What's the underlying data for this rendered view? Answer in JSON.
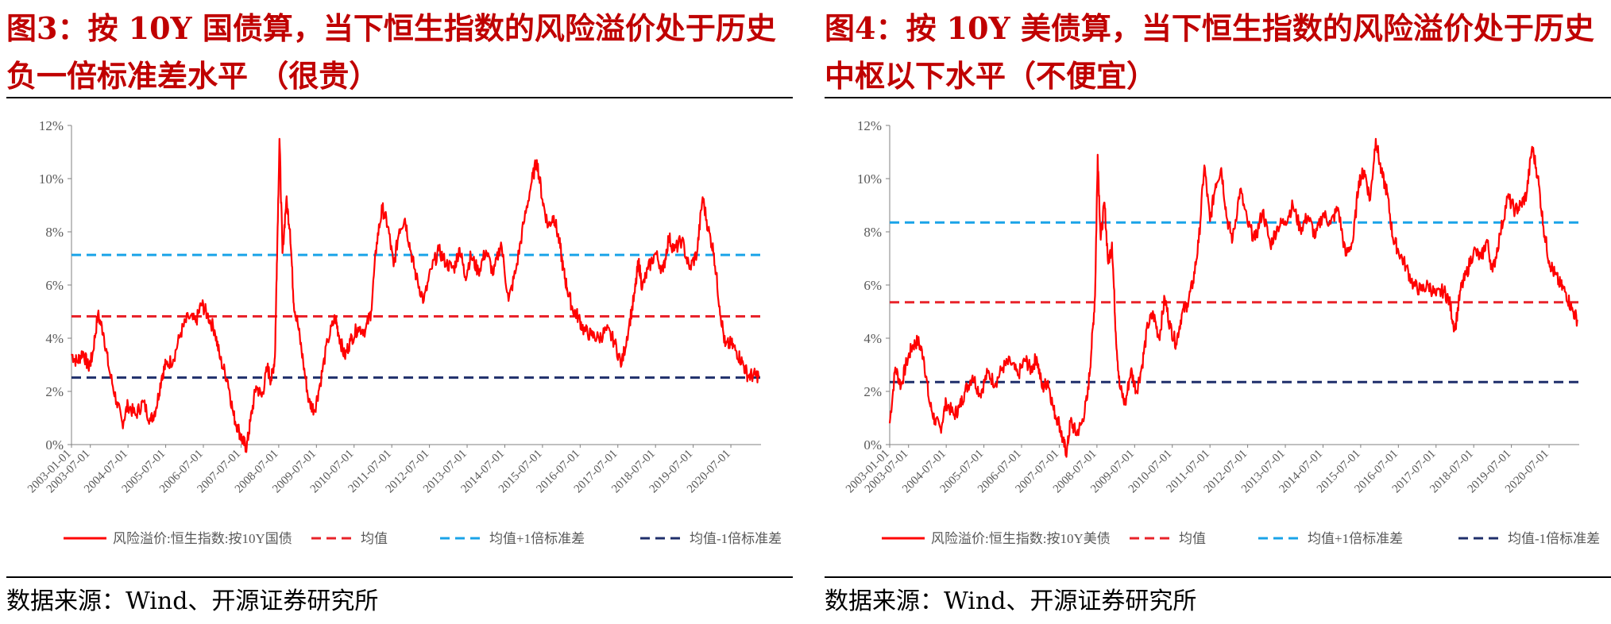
{
  "figures": [
    {
      "title": "图3：按 10Y 国债算，当下恒生指数的风险溢价处于历史负一倍标准差水平 （很贵）",
      "source": "数据来源：Wind、开源证券研究所",
      "chart_data": {
        "type": "line",
        "yticks": [
          "0%",
          "2%",
          "4%",
          "6%",
          "8%",
          "10%",
          "12%"
        ],
        "ylim": [
          0,
          12
        ],
        "xticks": [
          "2003-01-01",
          "2003-07-01",
          "2004-07-01",
          "2005-07-01",
          "2006-07-01",
          "2007-07-01",
          "2008-07-01",
          "2009-07-01",
          "2010-07-01",
          "2011-07-01",
          "2012-07-01",
          "2013-07-01",
          "2014-07-01",
          "2015-07-01",
          "2016-07-01",
          "2017-07-01",
          "2018-07-01",
          "2019-07-01",
          "2020-07-01"
        ],
        "xstart": 2003.0,
        "xend": 2021.3,
        "legend": [
          "风险溢价:恒生指数:按10Y国债",
          "均值",
          "均值+1倍标准差",
          "均值-1倍标准差"
        ],
        "mean": 4.82,
        "plus1sd": 7.13,
        "minus1sd": 2.52,
        "series": [
          {
            "name": "风险溢价:恒生指数:按10Y国债",
            "x": [
              2003.0,
              2003.15,
              2003.3,
              2003.45,
              2003.55,
              2003.7,
              2003.85,
              2004.0,
              2004.2,
              2004.35,
              2004.5,
              2004.7,
              2004.9,
              2005.1,
              2005.25,
              2005.4,
              2005.5,
              2005.7,
              2005.9,
              2006.1,
              2006.3,
              2006.45,
              2006.6,
              2006.8,
              2006.95,
              2007.15,
              2007.3,
              2007.45,
              2007.55,
              2007.65,
              2007.75,
              2007.9,
              2008.05,
              2008.2,
              2008.3,
              2008.4,
              2008.45,
              2008.52,
              2008.6,
              2008.7,
              2008.8,
              2008.9,
              2009.0,
              2009.15,
              2009.3,
              2009.45,
              2009.6,
              2009.8,
              2010.0,
              2010.1,
              2010.25,
              2010.4,
              2010.6,
              2010.8,
              2010.95,
              2011.1,
              2011.25,
              2011.4,
              2011.55,
              2011.7,
              2011.85,
              2012.0,
              2012.15,
              2012.35,
              2012.55,
              2012.75,
              2012.95,
              2013.15,
              2013.3,
              2013.45,
              2013.6,
              2013.8,
              2014.0,
              2014.2,
              2014.4,
              2014.6,
              2014.8,
              2015.0,
              2015.2,
              2015.35,
              2015.5,
              2015.65,
              2015.8,
              2015.95,
              2016.05,
              2016.15,
              2016.3,
              2016.45,
              2016.6,
              2016.8,
              2017.0,
              2017.2,
              2017.4,
              2017.6,
              2017.8,
              2017.95,
              2018.05,
              2018.15,
              2018.3,
              2018.5,
              2018.7,
              2018.85,
              2019.0,
              2019.2,
              2019.4,
              2019.6,
              2019.75,
              2019.9,
              2020.05,
              2020.2,
              2020.35,
              2020.5,
              2020.65,
              2020.8,
              2020.95,
              2021.1,
              2021.25
            ],
            "y": [
              3.4,
              3.1,
              3.5,
              2.9,
              3.3,
              4.9,
              4.2,
              2.8,
              1.6,
              0.8,
              1.5,
              1.1,
              1.6,
              0.9,
              1.4,
              2.6,
              3.0,
              3.2,
              4.2,
              4.8,
              4.6,
              5.3,
              4.9,
              4.3,
              3.2,
              2.4,
              1.1,
              0.5,
              0.1,
              -0.1,
              0.9,
              2.2,
              1.8,
              2.9,
              2.4,
              3.3,
              6.8,
              11.5,
              7.2,
              9.2,
              8.1,
              5.3,
              4.6,
              3.1,
              1.6,
              1.3,
              2.3,
              3.9,
              4.8,
              4.1,
              3.3,
              3.9,
              4.4,
              4.3,
              5.0,
              7.6,
              8.9,
              8.2,
              6.7,
              8.1,
              8.5,
              7.3,
              6.3,
              5.4,
              6.6,
              7.3,
              6.8,
              6.6,
              7.4,
              6.3,
              7.1,
              6.5,
              7.3,
              6.4,
              7.6,
              5.4,
              6.6,
              8.3,
              9.8,
              10.7,
              9.2,
              8.2,
              8.6,
              7.6,
              6.6,
              5.9,
              5.1,
              4.8,
              4.3,
              4.1,
              4.0,
              4.3,
              3.9,
              3.0,
              4.5,
              5.7,
              6.9,
              5.9,
              6.6,
              7.2,
              6.5,
              7.8,
              7.3,
              7.7,
              6.6,
              7.2,
              9.3,
              8.1,
              7.2,
              5.2,
              3.7,
              3.8,
              3.5,
              3.1,
              2.6,
              2.6,
              2.6
            ]
          }
        ]
      }
    },
    {
      "title": "图4：按 10Y 美债算，当下恒生指数的风险溢价处于历史中枢以下水平（不便宜）",
      "source": "数据来源：Wind、开源证券研究所",
      "chart_data": {
        "type": "line",
        "yticks": [
          "0%",
          "2%",
          "4%",
          "6%",
          "8%",
          "10%",
          "12%"
        ],
        "ylim": [
          0,
          12
        ],
        "xticks": [
          "2003-01-01",
          "2003-07-01",
          "2004-07-01",
          "2005-07-01",
          "2006-07-01",
          "2007-07-01",
          "2008-07-01",
          "2009-07-01",
          "2010-07-01",
          "2011-07-01",
          "2012-07-01",
          "2013-07-01",
          "2014-07-01",
          "2015-07-01",
          "2016-07-01",
          "2017-07-01",
          "2018-07-01",
          "2019-07-01",
          "2020-07-01"
        ],
        "xstart": 2003.0,
        "xend": 2021.3,
        "legend": [
          "风险溢价:恒生指数:按10Y美债",
          "均值",
          "均值+1倍标准差",
          "均值-1倍标准差"
        ],
        "mean": 5.35,
        "plus1sd": 8.35,
        "minus1sd": 2.35,
        "series": [
          {
            "name": "风险溢价:恒生指数:按10Y美债",
            "x": [
              2003.0,
              2003.15,
              2003.3,
              2003.45,
              2003.6,
              2003.75,
              2003.9,
              2004.05,
              2004.2,
              2004.35,
              2004.5,
              2004.7,
              2004.85,
              2005.0,
              2005.2,
              2005.4,
              2005.6,
              2005.8,
              2006.0,
              2006.2,
              2006.4,
              2006.6,
              2006.75,
              2006.9,
              2007.05,
              2007.2,
              2007.35,
              2007.5,
              2007.6,
              2007.7,
              2007.8,
              2007.95,
              2008.1,
              2008.25,
              2008.35,
              2008.45,
              2008.52,
              2008.6,
              2008.7,
              2008.8,
              2008.9,
              2009.0,
              2009.1,
              2009.25,
              2009.4,
              2009.55,
              2009.7,
              2009.85,
              2010.0,
              2010.15,
              2010.3,
              2010.45,
              2010.6,
              2010.75,
              2010.9,
              2011.05,
              2011.2,
              2011.35,
              2011.5,
              2011.65,
              2011.8,
              2011.95,
              2012.1,
              2012.3,
              2012.5,
              2012.7,
              2012.9,
              2013.1,
              2013.3,
              2013.5,
              2013.7,
              2013.9,
              2014.1,
              2014.3,
              2014.5,
              2014.7,
              2014.9,
              2015.1,
              2015.3,
              2015.45,
              2015.6,
              2015.75,
              2015.9,
              2016.05,
              2016.2,
              2016.35,
              2016.5,
              2016.7,
              2016.9,
              2017.1,
              2017.3,
              2017.5,
              2017.7,
              2017.85,
              2018.0,
              2018.15,
              2018.3,
              2018.5,
              2018.7,
              2018.85,
              2019.0,
              2019.2,
              2019.4,
              2019.6,
              2019.75,
              2019.9,
              2020.05,
              2020.2,
              2020.35,
              2020.5,
              2020.65,
              2020.8,
              2020.95,
              2021.1,
              2021.25
            ],
            "y": [
              0.8,
              2.9,
              2.2,
              3.1,
              3.7,
              3.9,
              3.3,
              1.6,
              0.9,
              0.6,
              1.6,
              1.1,
              1.4,
              2.0,
              2.6,
              1.9,
              2.7,
              2.3,
              2.9,
              3.1,
              2.6,
              3.2,
              2.8,
              3.3,
              2.1,
              2.4,
              1.3,
              0.8,
              0.1,
              -0.3,
              0.9,
              0.4,
              0.8,
              1.8,
              3.5,
              5.6,
              10.9,
              7.7,
              9.1,
              6.8,
              7.6,
              4.2,
              2.2,
              1.5,
              2.8,
              2.0,
              3.0,
              4.5,
              4.9,
              4.0,
              5.5,
              4.4,
              3.8,
              4.9,
              5.3,
              6.1,
              7.6,
              10.5,
              8.4,
              9.8,
              10.4,
              8.5,
              7.7,
              9.6,
              8.3,
              7.7,
              8.8,
              7.5,
              8.2,
              8.4,
              9.0,
              8.1,
              8.6,
              7.8,
              8.7,
              8.3,
              8.9,
              7.1,
              7.7,
              9.9,
              10.3,
              9.2,
              11.5,
              10.2,
              9.5,
              7.8,
              7.3,
              6.7,
              6.0,
              5.8,
              6.0,
              5.6,
              5.8,
              5.4,
              4.3,
              5.8,
              6.4,
              7.3,
              7.0,
              7.7,
              6.5,
              7.9,
              9.3,
              8.8,
              9.0,
              9.4,
              11.2,
              10.1,
              8.2,
              6.9,
              6.4,
              6.0,
              5.7,
              5.1,
              4.7
            ]
          }
        ]
      }
    }
  ]
}
